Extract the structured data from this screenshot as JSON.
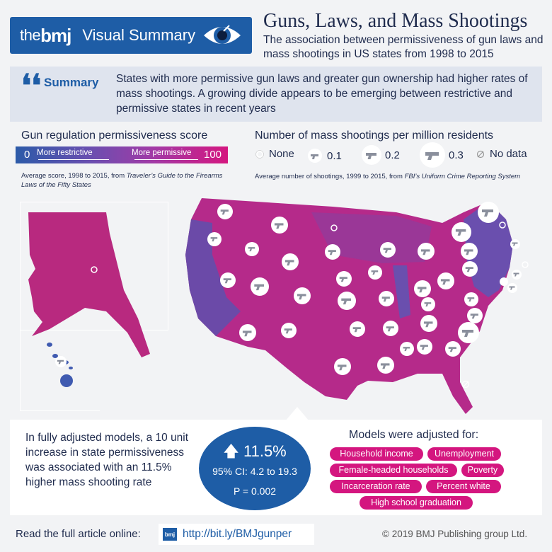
{
  "header": {
    "brand_the": "the",
    "brand_bmj": "bmj",
    "brand_visual": "Visual Summary",
    "title": "Guns, Laws, and Mass Shootings",
    "subtitle": "The association between permissiveness of gun laws and mass shootings in US states from 1998 to 2015",
    "eye_icon": "eye-icon"
  },
  "summary": {
    "label": "Summary",
    "quote_glyph": "❛❛",
    "text": "States with more permissive gun laws and greater gun ownership had higher rates of mass shootings. A growing divide appears to be emerging between restrictive and permissive states in recent years"
  },
  "regulation_legend": {
    "title": "Gun regulation permissiveness score",
    "min": "0",
    "max": "100",
    "min_label": "More restrictive",
    "max_label": "More permissive",
    "note_prefix": "Average score, 1998 to 2015, from ",
    "note_source": "Traveler’s Guide to the Firearms Laws of the Fifty States",
    "color_low": "#2c5aa8",
    "color_high": "#d4167f"
  },
  "rate_legend": {
    "title": "Number of mass shootings per million residents",
    "items": [
      {
        "label": "None",
        "icon": "open-circle-icon"
      },
      {
        "label": "0.1",
        "icon": "gun-icon"
      },
      {
        "label": "0.2",
        "icon": "gun-icon"
      },
      {
        "label": "0.3",
        "icon": "gun-icon"
      },
      {
        "label": "No data",
        "icon": "no-data-icon"
      }
    ],
    "note_prefix": "Average number of shootings, 1999 to 2015, from ",
    "note_source": "FBI’s Uniform Crime Reporting System"
  },
  "results": {
    "text": "In fully adjusted models, a 10 unit increase in state permissiveness was associated with an 11.5% higher mass shooting rate",
    "effect": "11.5%",
    "ci": "95% CI: 4.2 to 19.3",
    "p": "P = 0.002"
  },
  "adjustments": {
    "title": "Models were adjusted for:",
    "items": [
      "Household income",
      "Unemployment",
      "Female-headed households",
      "Poverty",
      "Incarceration rate",
      "Percent white",
      "High school graduation"
    ]
  },
  "footer": {
    "label": "Read the full article online:",
    "link_logo": "bmj",
    "link": "http://bit.ly/BMJgunper",
    "copyright": "© 2019 BMJ Publishing group Ltd."
  }
}
